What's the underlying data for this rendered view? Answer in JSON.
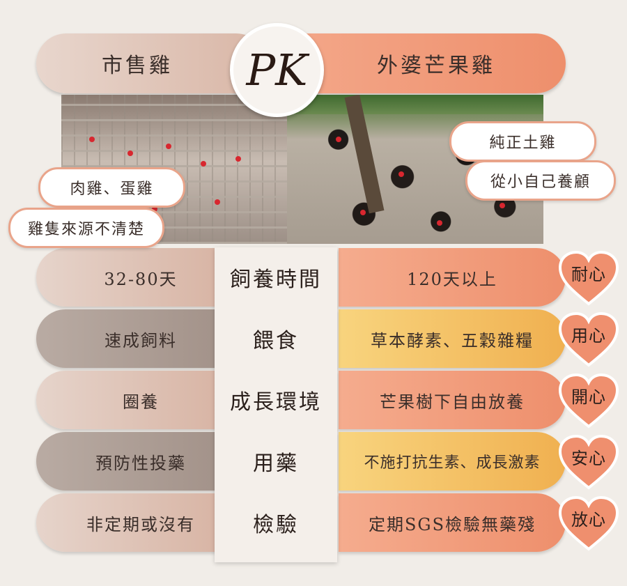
{
  "header": {
    "left_title": "市售雞",
    "pk": "PK",
    "right_title": "外婆芒果雞"
  },
  "tags": {
    "left_1": "肉雞、蛋雞",
    "left_2": "雞隻來源不清楚",
    "right_1": "純正土雞",
    "right_2": "從小自己養顧"
  },
  "rows": [
    {
      "left": "32-80天",
      "center": "飼養時間",
      "right": "120天以上",
      "heart": "耐心"
    },
    {
      "left": "速成飼料",
      "center": "餵食",
      "right": "草本酵素、五穀雜糧",
      "heart": "用心"
    },
    {
      "left": "圈養",
      "center": "成長環境",
      "right": "芒果樹下自由放養",
      "heart": "開心"
    },
    {
      "left": "預防性投藥",
      "center": "用藥",
      "right": "不施打抗生素、成長激素",
      "heart": "安心"
    },
    {
      "left": "非定期或沒有",
      "center": "檢驗",
      "right": "定期SGS檢驗無藥殘",
      "heart": "放心"
    }
  ],
  "colors": {
    "background": "#f1ede8",
    "left_pill": "#d9b6a6",
    "right_pill": "#ee8f6c",
    "right_alt": "#f0b050",
    "heart": "#ef8f6e"
  }
}
